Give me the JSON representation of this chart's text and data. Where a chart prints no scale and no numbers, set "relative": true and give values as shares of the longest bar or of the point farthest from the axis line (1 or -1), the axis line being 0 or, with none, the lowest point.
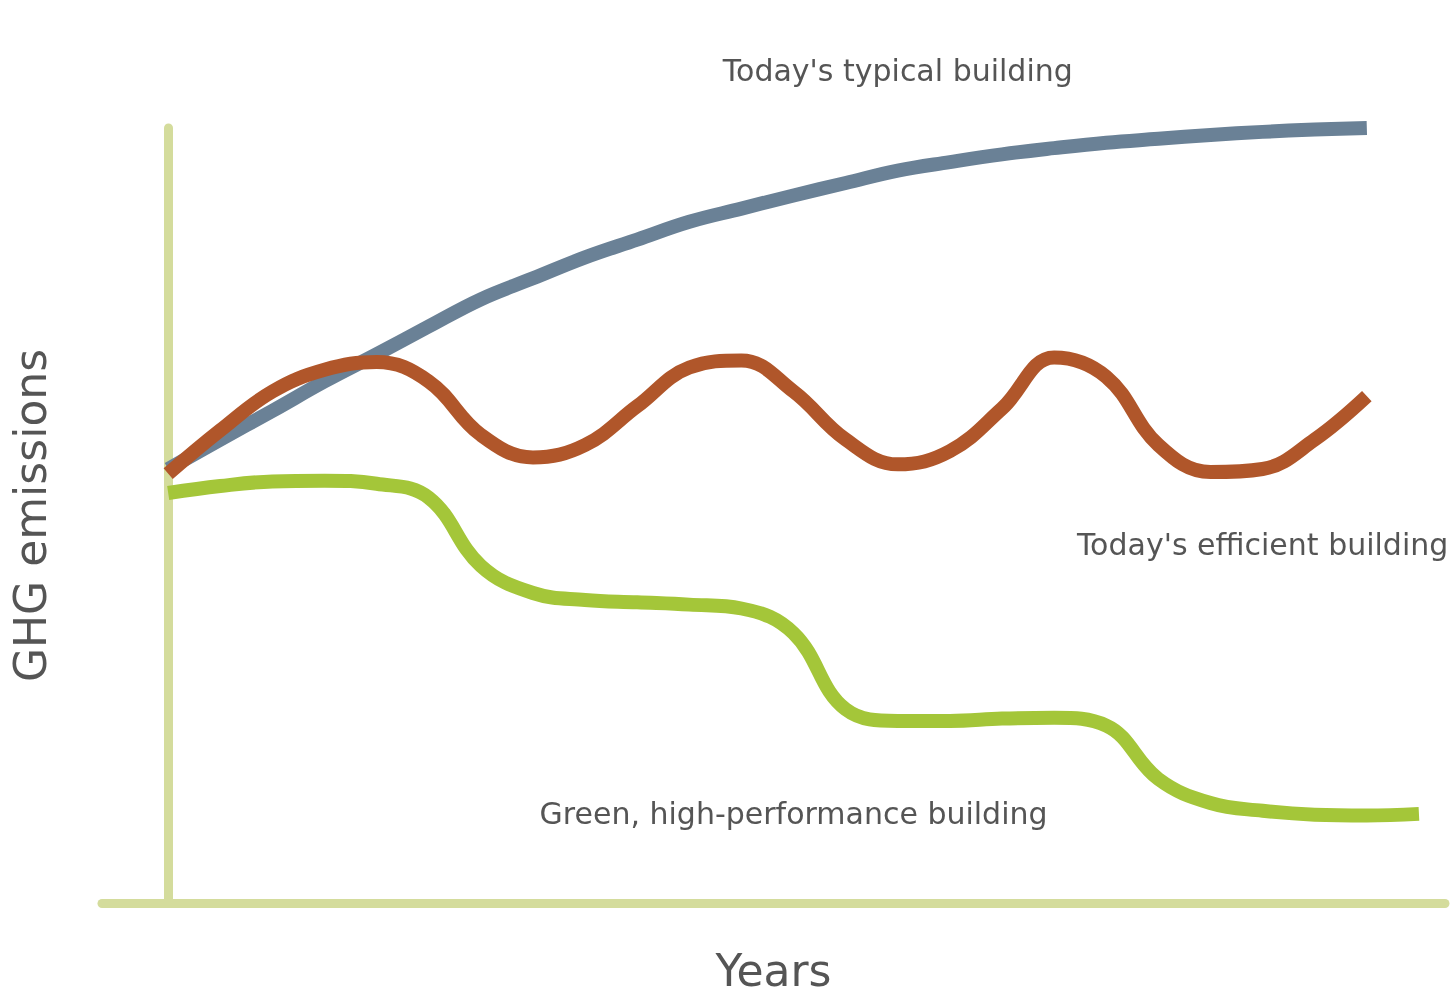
{
  "chart_data": {
    "type": "line",
    "relative": true,
    "xlabel": "Years",
    "ylabel": "GHG emissions",
    "categories": [
      null,
      null,
      null,
      null,
      null,
      null,
      null,
      null,
      null,
      null,
      null,
      null,
      null,
      null,
      null,
      null,
      null,
      null,
      null,
      null,
      null,
      null,
      null,
      null,
      null
    ],
    "series": [
      {
        "name": "Today's typical building",
        "color": "#6a8196",
        "values": [
          0.56,
          0.598,
          0.635,
          0.673,
          0.708,
          0.744,
          0.779,
          0.806,
          0.833,
          0.856,
          0.879,
          0.896,
          0.913,
          0.929,
          0.945,
          0.956,
          0.966,
          0.974,
          0.981,
          0.986,
          0.991,
          0.995,
          0.998,
          1.0,
          null
        ]
      },
      {
        "name": "Today's efficient building",
        "color": "#b0562a",
        "values": [
          0.554,
          0.61,
          0.66,
          0.688,
          0.698,
          0.673,
          0.604,
          0.575,
          0.591,
          0.641,
          0.691,
          0.7,
          0.66,
          0.598,
          0.566,
          0.583,
          0.638,
          0.704,
          0.679,
          0.591,
          0.556,
          0.56,
          0.598,
          0.654,
          null
        ]
      },
      {
        "name": "Green, high-performance building",
        "color": "#a4c639",
        "values": [
          0.529,
          0.538,
          0.544,
          0.545,
          0.541,
          0.523,
          0.435,
          0.4,
          0.391,
          0.388,
          0.385,
          0.38,
          0.348,
          0.25,
          0.235,
          0.235,
          0.238,
          0.239,
          0.229,
          0.16,
          0.129,
          0.119,
          0.114,
          0.113,
          0.115
        ]
      }
    ]
  }
}
